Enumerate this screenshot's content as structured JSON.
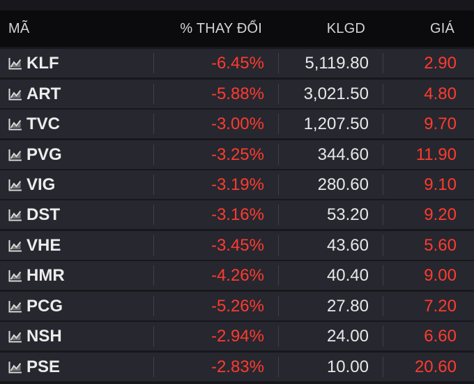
{
  "header": {
    "symbol": "MÃ",
    "change": "% THAY ĐỔI",
    "volume": "KLGD",
    "price": "GIÁ"
  },
  "colors": {
    "negative": "#ff3b2f",
    "row_background": "#27272f",
    "header_background": "#0b0b0e"
  },
  "rows": [
    {
      "symbol": "KLF",
      "change": "-6.45%",
      "volume": "5,119.80",
      "price": "2.90"
    },
    {
      "symbol": "ART",
      "change": "-5.88%",
      "volume": "3,021.50",
      "price": "4.80"
    },
    {
      "symbol": "TVC",
      "change": "-3.00%",
      "volume": "1,207.50",
      "price": "9.70"
    },
    {
      "symbol": "PVG",
      "change": "-3.25%",
      "volume": "344.60",
      "price": "11.90"
    },
    {
      "symbol": "VIG",
      "change": "-3.19%",
      "volume": "280.60",
      "price": "9.10"
    },
    {
      "symbol": "DST",
      "change": "-3.16%",
      "volume": "53.20",
      "price": "9.20"
    },
    {
      "symbol": "VHE",
      "change": "-3.45%",
      "volume": "43.60",
      "price": "5.60"
    },
    {
      "symbol": "HMR",
      "change": "-4.26%",
      "volume": "40.40",
      "price": "9.00"
    },
    {
      "symbol": "PCG",
      "change": "-5.26%",
      "volume": "27.80",
      "price": "7.20"
    },
    {
      "symbol": "NSH",
      "change": "-2.94%",
      "volume": "24.00",
      "price": "6.60"
    },
    {
      "symbol": "PSE",
      "change": "-2.83%",
      "volume": "10.00",
      "price": "20.60"
    }
  ]
}
